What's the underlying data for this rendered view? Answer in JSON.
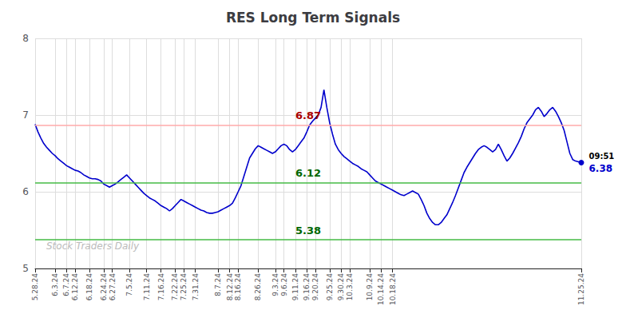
{
  "chart_data": {
    "type": "line",
    "title": "RES Long Term Signals",
    "categories": [
      "5.28.24",
      null,
      null,
      null,
      null,
      null,
      null,
      "6.3.24",
      null,
      null,
      null,
      "6.7.24",
      null,
      null,
      "6.12.24",
      null,
      null,
      null,
      null,
      "6.18.24",
      null,
      null,
      null,
      null,
      "6.24.24",
      null,
      null,
      "6.27.24",
      null,
      null,
      null,
      null,
      null,
      "7.5.24",
      null,
      null,
      null,
      null,
      null,
      "7.11.24",
      null,
      null,
      null,
      null,
      "7.16.24",
      null,
      null,
      null,
      null,
      "7.22.24",
      null,
      null,
      "7.25.24",
      null,
      null,
      null,
      "7.31.24",
      null,
      null,
      null,
      null,
      null,
      null,
      null,
      "8.7.24",
      null,
      null,
      null,
      "8.12.24",
      null,
      null,
      "8.16.24",
      null,
      null,
      null,
      null,
      null,
      null,
      "8.26.24",
      null,
      null,
      null,
      null,
      null,
      "9.3.24",
      null,
      null,
      "9.6.24",
      null,
      null,
      null,
      "9.11.24",
      null,
      null,
      null,
      "9.16.24",
      null,
      null,
      "9.20.24",
      null,
      null,
      null,
      null,
      "9.25.24",
      null,
      null,
      null,
      "9.30.24",
      null,
      null,
      "10.3.24",
      null,
      null,
      null,
      null,
      null,
      null,
      "10.9.24",
      null,
      null,
      null,
      "10.14.24",
      null,
      null,
      null,
      "10.18.24",
      null,
      null,
      null,
      null,
      null,
      null,
      null,
      null,
      null,
      null,
      null,
      null,
      null,
      null,
      null,
      null,
      null,
      null,
      null,
      null,
      null,
      null,
      null,
      null,
      null,
      null,
      null,
      null,
      null,
      null,
      null,
      null,
      null,
      null,
      null,
      null,
      null,
      null,
      null,
      null,
      null,
      null,
      null,
      null,
      null,
      null,
      null,
      null,
      null,
      null,
      null,
      null,
      null,
      null,
      null,
      null,
      null,
      null,
      null,
      null,
      null,
      null,
      null,
      null,
      null,
      "11.25.24"
    ],
    "values": [
      6.88,
      6.78,
      6.7,
      6.63,
      6.58,
      6.54,
      6.5,
      6.47,
      6.43,
      6.4,
      6.37,
      6.34,
      6.32,
      6.3,
      6.28,
      6.27,
      6.25,
      6.22,
      6.2,
      6.18,
      6.17,
      6.17,
      6.16,
      6.14,
      6.1,
      6.08,
      6.06,
      6.08,
      6.1,
      6.13,
      6.16,
      6.19,
      6.22,
      6.18,
      6.14,
      6.1,
      6.06,
      6.02,
      5.98,
      5.95,
      5.92,
      5.9,
      5.88,
      5.85,
      5.82,
      5.8,
      5.78,
      5.75,
      5.78,
      5.82,
      5.86,
      5.9,
      5.88,
      5.86,
      5.84,
      5.82,
      5.8,
      5.78,
      5.76,
      5.75,
      5.73,
      5.72,
      5.72,
      5.73,
      5.74,
      5.76,
      5.78,
      5.8,
      5.82,
      5.85,
      5.92,
      6.0,
      6.08,
      6.2,
      6.32,
      6.44,
      6.5,
      6.56,
      6.6,
      6.58,
      6.56,
      6.54,
      6.52,
      6.5,
      6.52,
      6.56,
      6.6,
      6.62,
      6.6,
      6.55,
      6.52,
      6.55,
      6.6,
      6.65,
      6.7,
      6.78,
      6.87,
      6.92,
      6.96,
      7.0,
      7.1,
      7.33,
      7.1,
      6.9,
      6.75,
      6.62,
      6.55,
      6.5,
      6.46,
      6.43,
      6.4,
      6.37,
      6.35,
      6.33,
      6.3,
      6.28,
      6.26,
      6.22,
      6.18,
      6.14,
      6.12,
      6.1,
      6.08,
      6.06,
      6.04,
      6.02,
      6.0,
      5.98,
      5.96,
      5.95,
      5.97,
      5.99,
      6.01,
      5.99,
      5.97,
      5.9,
      5.82,
      5.72,
      5.65,
      5.6,
      5.57,
      5.57,
      5.6,
      5.65,
      5.7,
      5.78,
      5.86,
      5.95,
      6.05,
      6.15,
      6.25,
      6.32,
      6.38,
      6.44,
      6.5,
      6.55,
      6.58,
      6.6,
      6.58,
      6.55,
      6.52,
      6.55,
      6.62,
      6.55,
      6.47,
      6.4,
      6.44,
      6.5,
      6.57,
      6.64,
      6.72,
      6.82,
      6.9,
      6.95,
      7.0,
      7.07,
      7.1,
      7.05,
      6.98,
      7.02,
      7.07,
      7.1,
      7.05,
      6.98,
      6.9,
      6.8,
      6.65,
      6.5,
      6.42,
      6.4,
      6.39,
      6.38
    ],
    "color": "#0000cc",
    "ylim": [
      5.0,
      8.0
    ],
    "yticks": [
      5,
      6,
      7,
      8
    ],
    "grid": true,
    "reference_lines": [
      {
        "y": 6.87,
        "color": "#ffaaaa",
        "label": "6.87",
        "label_color": "#aa0000"
      },
      {
        "y": 6.12,
        "color": "#44bb44",
        "label": "6.12",
        "label_color": "#006600"
      },
      {
        "y": 5.38,
        "color": "#44bb44",
        "label": "5.38",
        "label_color": "#006600"
      }
    ],
    "last_point": {
      "label": "09:51",
      "value_label": "6.38",
      "color": "#0000cc"
    },
    "watermark": "Stock Traders Daily",
    "watermark_color": "#bbbbbb"
  }
}
